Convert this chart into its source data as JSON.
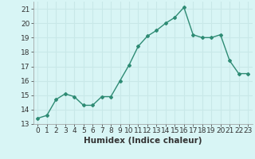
{
  "x": [
    0,
    1,
    2,
    3,
    4,
    5,
    6,
    7,
    8,
    9,
    10,
    11,
    12,
    13,
    14,
    15,
    16,
    17,
    18,
    19,
    20,
    21,
    22,
    23
  ],
  "y": [
    13.4,
    13.6,
    14.7,
    15.1,
    14.9,
    14.3,
    14.3,
    14.9,
    14.9,
    16.0,
    17.1,
    18.4,
    19.1,
    19.5,
    20.0,
    20.4,
    21.1,
    19.2,
    19.0,
    19.0,
    19.2,
    17.4,
    16.5,
    16.5
  ],
  "line_color": "#2e8b74",
  "marker": "D",
  "marker_size": 2.0,
  "bg_color": "#d8f5f5",
  "grid_color": "#c8e8e8",
  "xlabel": "Humidex (Indice chaleur)",
  "ylim": [
    13,
    21.5
  ],
  "yticks": [
    13,
    14,
    15,
    16,
    17,
    18,
    19,
    20,
    21
  ],
  "xticks": [
    0,
    1,
    2,
    3,
    4,
    5,
    6,
    7,
    8,
    9,
    10,
    11,
    12,
    13,
    14,
    15,
    16,
    17,
    18,
    19,
    20,
    21,
    22,
    23
  ],
  "xlim": [
    -0.5,
    23.5
  ],
  "tick_fontsize": 6.5,
  "xlabel_fontsize": 7.5,
  "linewidth": 1.0
}
